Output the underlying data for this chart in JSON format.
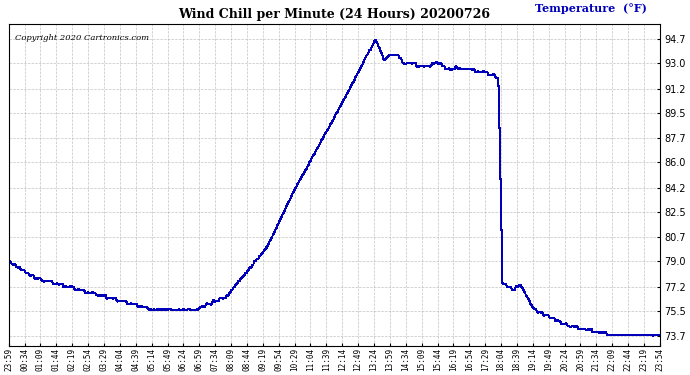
{
  "title": "Wind Chill per Minute (24 Hours) 20200726",
  "ylabel": "Temperature  (°F)",
  "copyright_text": "Copyright 2020 Cartronics.com",
  "line_color": "#0000bb",
  "bg_color": "#ffffff",
  "grid_color": "#aaaaaa",
  "ylim": [
    73.0,
    95.8
  ],
  "yticks": [
    73.7,
    75.5,
    77.2,
    79.0,
    80.7,
    82.5,
    84.2,
    86.0,
    87.7,
    89.5,
    91.2,
    93.0,
    94.7
  ],
  "xtick_labels": [
    "23:59",
    "00:34",
    "01:09",
    "01:44",
    "02:19",
    "02:54",
    "03:29",
    "04:04",
    "04:39",
    "05:14",
    "05:49",
    "06:24",
    "06:59",
    "07:34",
    "08:09",
    "08:44",
    "09:19",
    "09:54",
    "10:29",
    "11:04",
    "11:39",
    "12:14",
    "12:49",
    "13:24",
    "13:59",
    "14:34",
    "15:09",
    "15:44",
    "16:19",
    "16:54",
    "17:29",
    "18:04",
    "18:39",
    "19:14",
    "19:49",
    "20:24",
    "20:59",
    "21:34",
    "22:09",
    "22:44",
    "23:19",
    "23:54"
  ],
  "num_points": 1440,
  "figsize": [
    6.9,
    3.75
  ],
  "dpi": 100
}
